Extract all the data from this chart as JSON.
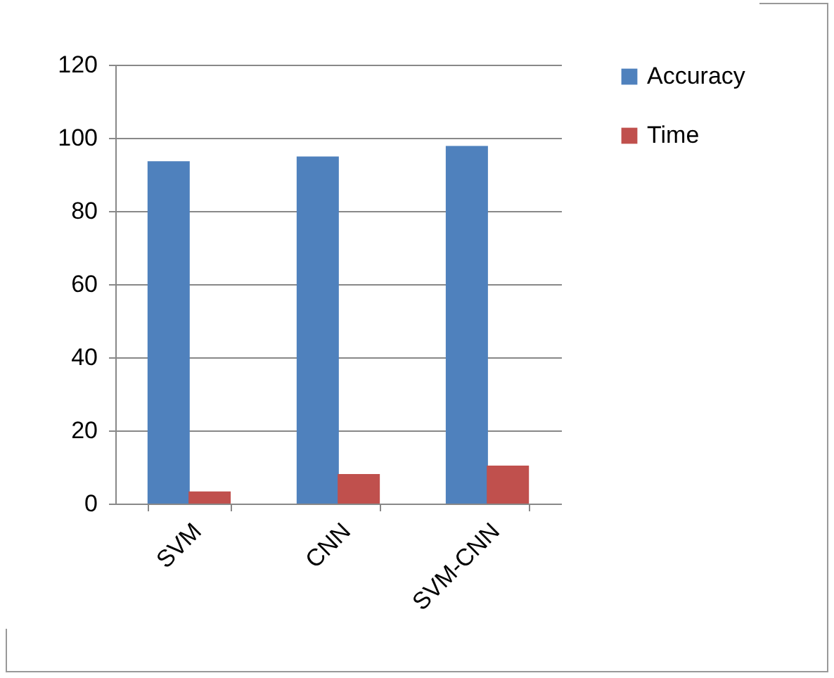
{
  "chart_data": {
    "type": "bar",
    "categories": [
      "SVM",
      "CNN",
      "SVM-CNN"
    ],
    "series": [
      {
        "name": "Accuracy",
        "color": "#4f81bd",
        "values": [
          93.6,
          94.9,
          97.8
        ]
      },
      {
        "name": "Time",
        "color": "#c0504d",
        "values": [
          3.3,
          8.1,
          10.4
        ]
      }
    ],
    "ylim": [
      0,
      120
    ],
    "yticks": [
      0,
      20,
      40,
      60,
      80,
      100,
      120
    ],
    "grid": "y",
    "legend": "right"
  }
}
